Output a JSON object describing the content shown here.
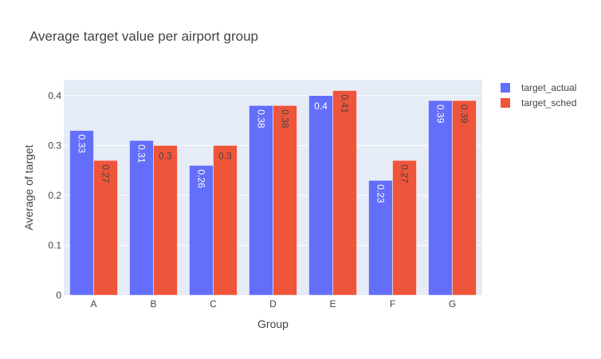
{
  "chart_data": {
    "type": "bar",
    "title": "Average target value per airport group",
    "xlabel": "Group",
    "ylabel": "Average of target",
    "categories": [
      "A",
      "B",
      "C",
      "D",
      "E",
      "F",
      "G"
    ],
    "series": [
      {
        "name": "target_actual",
        "color": "#636efa",
        "values": [
          0.33,
          0.31,
          0.26,
          0.38,
          0.4,
          0.23,
          0.39
        ],
        "labels": [
          "0.33",
          "0.31",
          "0.26",
          "0.38",
          "0.4",
          "0.23",
          "0.39"
        ],
        "label_color": "#ffffff"
      },
      {
        "name": "target_sched",
        "color": "#ef553b",
        "values": [
          0.27,
          0.3,
          0.3,
          0.38,
          0.41,
          0.27,
          0.39
        ],
        "labels": [
          "0.27",
          "0.3",
          "0.3",
          "0.38",
          "0.41",
          "0.27",
          "0.39"
        ],
        "label_color": "#444444"
      }
    ],
    "yticks": [
      0,
      0.1,
      0.2,
      0.3,
      0.4
    ],
    "ytick_labels": [
      "0",
      "0.1",
      "0.2",
      "0.3",
      "0.4"
    ],
    "ylim": [
      0,
      0.4316
    ],
    "grid": true,
    "plot_bg": "#e5ecf6",
    "legend_position": "top-right"
  }
}
